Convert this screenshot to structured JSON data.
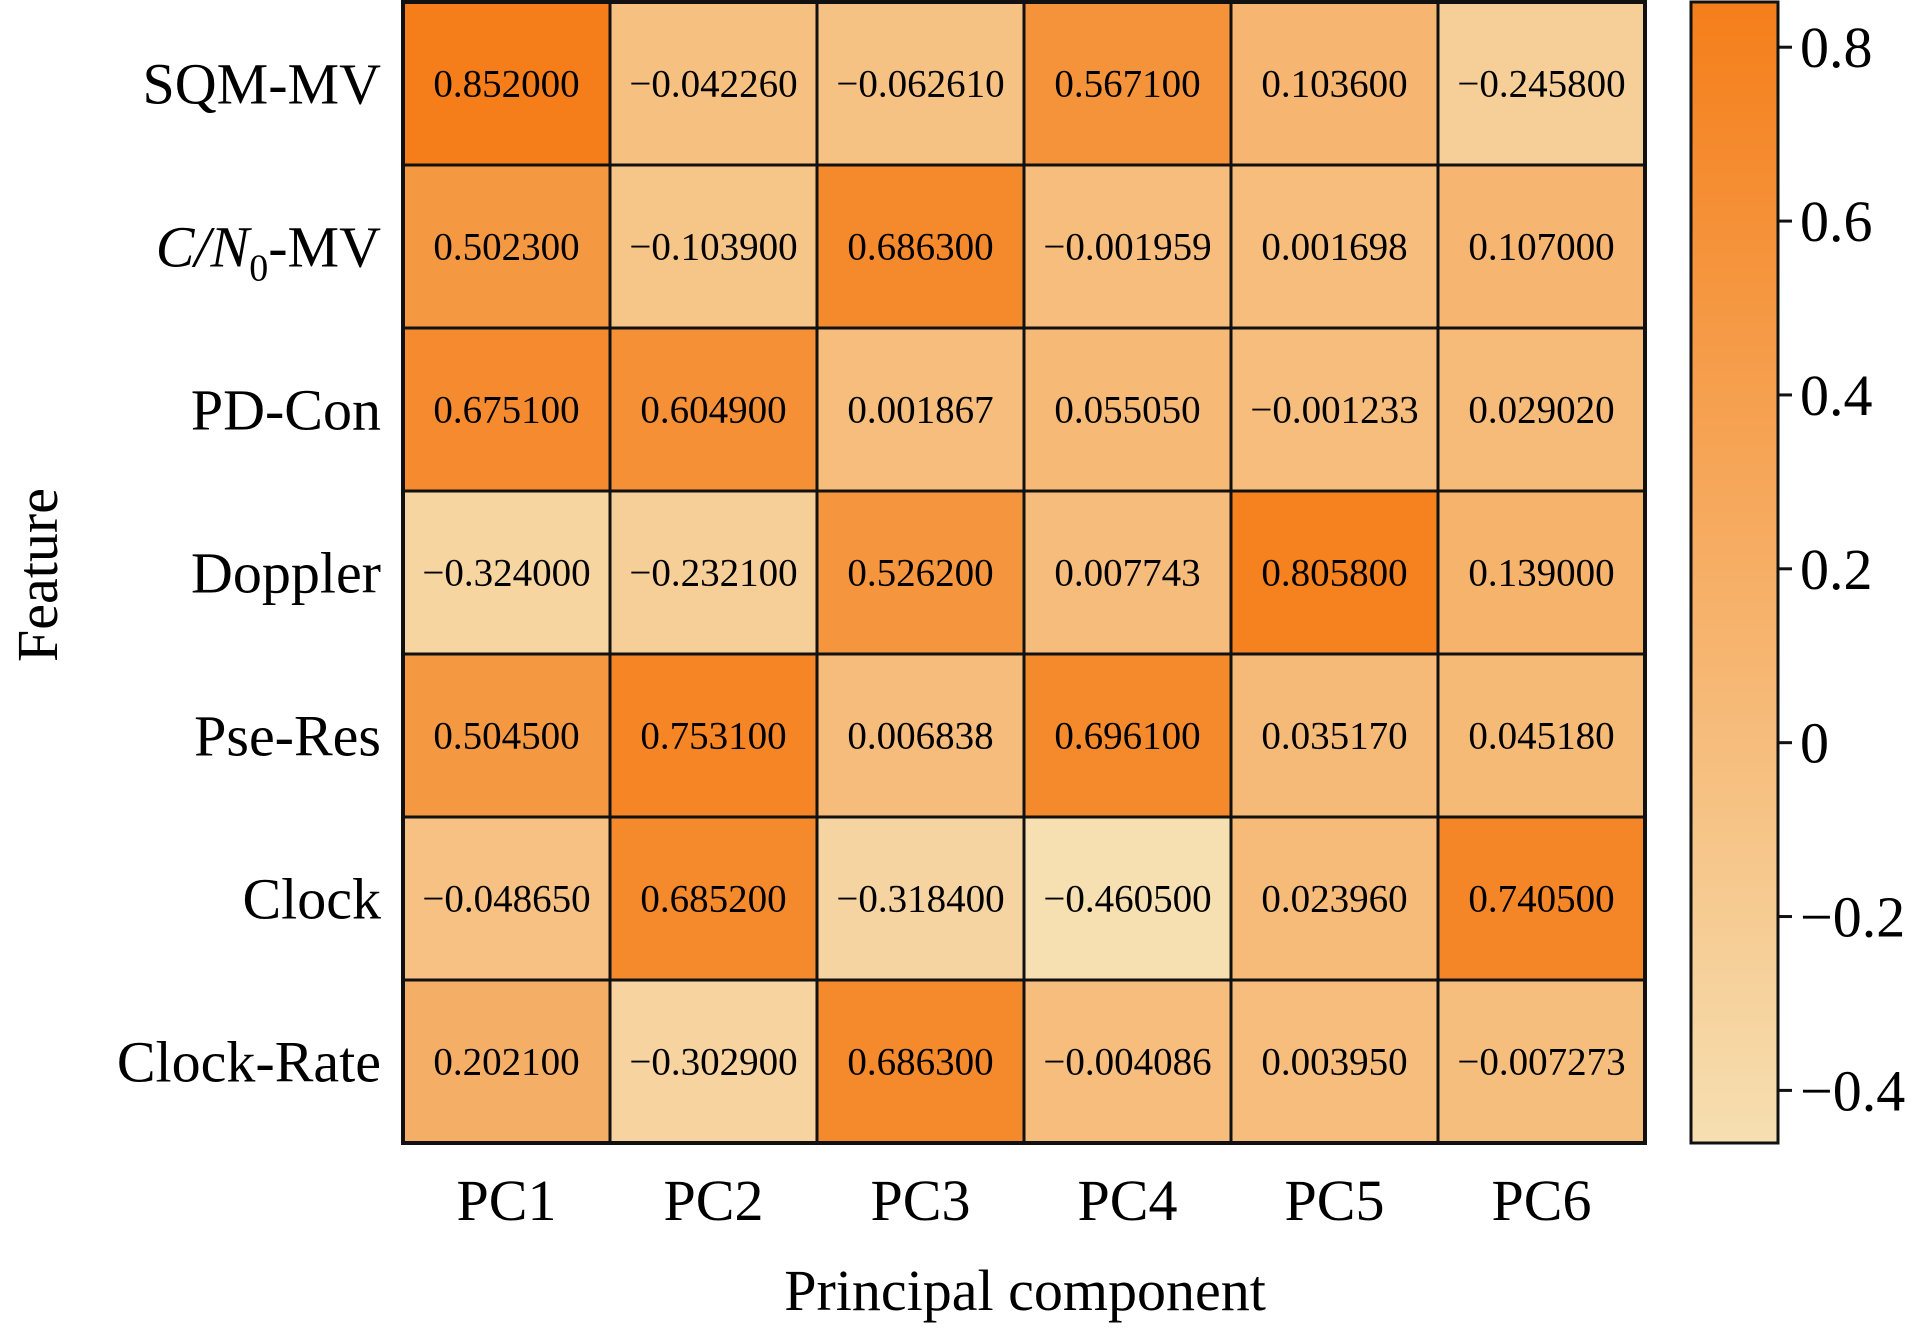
{
  "chart_data": {
    "type": "heatmap",
    "title": "",
    "xlabel": "Principal component",
    "ylabel": "Feature",
    "columns": [
      "PC1",
      "PC2",
      "PC3",
      "PC4",
      "PC5",
      "PC6"
    ],
    "rows": [
      {
        "label": "SQM-MV",
        "italic_prefix": "",
        "subscript": "",
        "suffix": ""
      },
      {
        "label": "C/N0-MV",
        "italic_prefix": "C/N",
        "subscript": "0",
        "suffix": "-MV"
      },
      {
        "label": "PD-Con",
        "italic_prefix": "",
        "subscript": "",
        "suffix": ""
      },
      {
        "label": "Doppler",
        "italic_prefix": "",
        "subscript": "",
        "suffix": ""
      },
      {
        "label": "Pse-Res",
        "italic_prefix": "",
        "subscript": "",
        "suffix": ""
      },
      {
        "label": "Clock",
        "italic_prefix": "",
        "subscript": "",
        "suffix": ""
      },
      {
        "label": "Clock-Rate",
        "italic_prefix": "",
        "subscript": "",
        "suffix": ""
      }
    ],
    "values": [
      [
        0.852,
        -0.04226,
        -0.06261,
        0.5671,
        0.1036,
        -0.2458
      ],
      [
        0.5023,
        -0.1039,
        0.6863,
        -0.001959,
        0.001698,
        0.107
      ],
      [
        0.6751,
        0.6049,
        0.001867,
        0.05505,
        -0.001233,
        0.02902
      ],
      [
        -0.324,
        -0.2321,
        0.5262,
        0.007743,
        0.8058,
        0.139
      ],
      [
        0.5045,
        0.7531,
        0.006838,
        0.6961,
        0.03517,
        0.04518
      ],
      [
        -0.04865,
        0.6852,
        -0.3184,
        -0.4605,
        0.02396,
        0.7405
      ],
      [
        0.2021,
        -0.3029,
        0.6863,
        -0.004086,
        0.00395,
        -0.007273
      ]
    ],
    "value_labels": [
      [
        "0.852000",
        "−0.042260",
        "−0.062610",
        "0.567100",
        "0.103600",
        "−0.245800"
      ],
      [
        "0.502300",
        "−0.103900",
        "0.686300",
        "−0.001959",
        "0.001698",
        "0.107000"
      ],
      [
        "0.675100",
        "0.604900",
        "0.001867",
        "0.055050",
        "−0.001233",
        "0.029020"
      ],
      [
        "−0.324000",
        "−0.232100",
        "0.526200",
        "0.007743",
        "0.805800",
        "0.139000"
      ],
      [
        "0.504500",
        "0.753100",
        "0.006838",
        "0.696100",
        "0.035170",
        "0.045180"
      ],
      [
        "−0.048650",
        "0.685200",
        "−0.318400",
        "−0.460500",
        "0.023960",
        "0.740500"
      ],
      [
        "0.202100",
        "−0.302900",
        "0.686300",
        "−0.004086",
        "0.003950",
        "−0.007273"
      ]
    ],
    "colorbar": {
      "range": [
        -0.4605,
        0.852
      ],
      "ticks": [
        0.8,
        0.6,
        0.4,
        0.2,
        0,
        -0.2,
        -0.4
      ],
      "tick_labels": [
        "0.8",
        "0.6",
        "0.4",
        "0.2",
        "0",
        "−0.2",
        "−0.4"
      ],
      "low_color": "#f6dfb1",
      "high_color": "#f57e1a"
    }
  }
}
